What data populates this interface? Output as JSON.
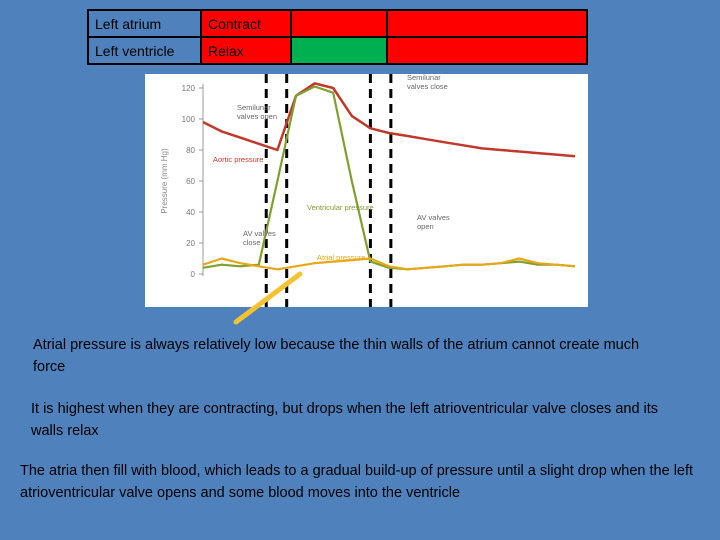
{
  "table": {
    "rows": [
      {
        "label": "Left atrium",
        "state": "Contract",
        "state_color": "#ff0000",
        "col3_color": "#ff0000",
        "col4_color": "#ff0000"
      },
      {
        "label": "Left ventricle",
        "state": "Relax",
        "state_color": "#ff0000",
        "col3_color": "#00b050",
        "col4_color": "#ff0000"
      }
    ]
  },
  "chart_data": {
    "type": "line",
    "ylabel": "Pressure (mm Hg)",
    "yticks": [
      0,
      20,
      40,
      60,
      80,
      100,
      120
    ],
    "ylim": [
      0,
      120
    ],
    "x": [
      0,
      0.05,
      0.1,
      0.15,
      0.2,
      0.25,
      0.3,
      0.35,
      0.4,
      0.45,
      0.5,
      0.55,
      0.6,
      0.65,
      0.7,
      0.75,
      0.8,
      0.85,
      0.9,
      0.95,
      1.0
    ],
    "series": [
      {
        "name": "Aortic pressure",
        "color": "#c0392b",
        "values": [
          98,
          92,
          88,
          84,
          80,
          115,
          123,
          120,
          102,
          94,
          91,
          89,
          87,
          85,
          83,
          81,
          80,
          79,
          78,
          77,
          76
        ]
      },
      {
        "name": "Ventricular pressure",
        "color": "#7f9f2f",
        "values": [
          4,
          6,
          5,
          6,
          60,
          115,
          121,
          117,
          60,
          8,
          4,
          3,
          4,
          5,
          6,
          6,
          7,
          8,
          6,
          6,
          5
        ]
      },
      {
        "name": "Atrial pressure",
        "color": "#e6a817",
        "values": [
          6,
          10,
          7,
          5,
          3,
          5,
          7,
          8,
          9,
          10,
          5,
          3,
          4,
          5,
          6,
          6,
          7,
          10,
          7,
          6,
          5
        ]
      }
    ],
    "annotations": [
      {
        "text_lines": [
          "Semilunar",
          "valves open"
        ],
        "key": "semilunar_open"
      },
      {
        "text_lines": [
          "Semilunar",
          "valves close"
        ],
        "key": "semilunar_close"
      },
      {
        "text_lines": [
          "AV valves",
          "close"
        ],
        "key": "av_close"
      },
      {
        "text_lines": [
          "AV valves",
          "open"
        ],
        "key": "av_open"
      },
      {
        "text_lines": [
          "Aortic pressure"
        ],
        "key": "aortic_label"
      },
      {
        "text_lines": [
          "Ventricular pressure"
        ],
        "key": "ventricular_label"
      },
      {
        "text_lines": [
          "Atrial pressure"
        ],
        "key": "atrial_label"
      }
    ]
  },
  "paragraphs": {
    "p1": "Atrial pressure is always relatively low because the thin walls of the atrium cannot create much force",
    "p2": "It is highest when they are contracting, but drops when the left atrioventricular valve closes and its walls relax",
    "p3": "The atria then fill with blood, which leads to a gradual build-up of pressure until a slight drop when the left atrioventricular valve opens and some blood moves into the ventricle"
  },
  "colors": {
    "background": "#4f81bd",
    "pointer": "#f4c430"
  }
}
